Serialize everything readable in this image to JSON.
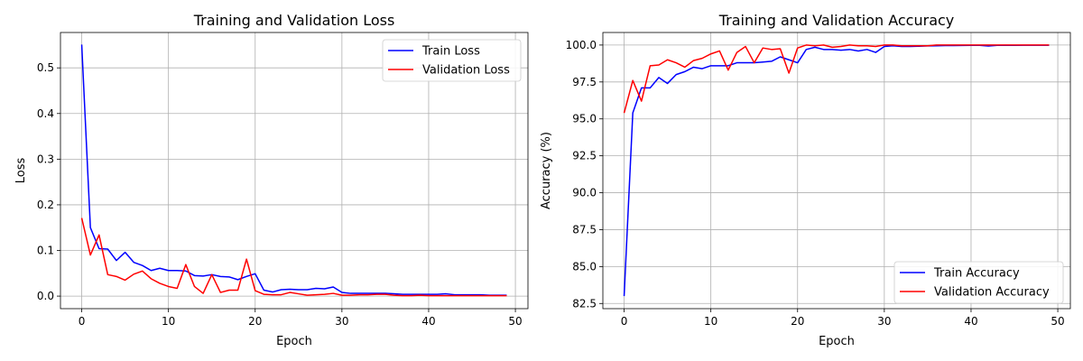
{
  "chart_data": [
    {
      "type": "line",
      "title": "Training and Validation Loss",
      "xlabel": "Epoch",
      "ylabel": "Loss",
      "xlim": [
        -2.45,
        51.45
      ],
      "ylim": [
        -0.0275,
        0.5775
      ],
      "xticks": [
        0,
        10,
        20,
        30,
        40,
        50
      ],
      "yticks": [
        0.0,
        0.1,
        0.2,
        0.3,
        0.4,
        0.5
      ],
      "ytick_labels": [
        "0.0",
        "0.1",
        "0.2",
        "0.3",
        "0.4",
        "0.5"
      ],
      "grid": true,
      "legend_loc": "upper-right",
      "series": [
        {
          "name": "Train Loss",
          "color": "#0000ff",
          "x": [
            0,
            1,
            2,
            3,
            4,
            5,
            6,
            7,
            8,
            9,
            10,
            11,
            12,
            13,
            14,
            15,
            16,
            17,
            18,
            19,
            20,
            21,
            22,
            23,
            24,
            25,
            26,
            27,
            28,
            29,
            30,
            31,
            32,
            33,
            34,
            35,
            36,
            37,
            38,
            39,
            40,
            41,
            42,
            43,
            44,
            45,
            46,
            47,
            48,
            49
          ],
          "values": [
            0.551,
            0.15,
            0.104,
            0.103,
            0.078,
            0.096,
            0.074,
            0.067,
            0.056,
            0.061,
            0.056,
            0.056,
            0.055,
            0.045,
            0.044,
            0.047,
            0.043,
            0.042,
            0.036,
            0.043,
            0.049,
            0.013,
            0.009,
            0.014,
            0.015,
            0.014,
            0.014,
            0.017,
            0.016,
            0.02,
            0.008,
            0.006,
            0.006,
            0.006,
            0.006,
            0.006,
            0.005,
            0.004,
            0.004,
            0.004,
            0.004,
            0.004,
            0.005,
            0.003,
            0.003,
            0.003,
            0.003,
            0.002,
            0.002,
            0.002
          ]
        },
        {
          "name": "Validation Loss",
          "color": "#ff0000",
          "x": [
            0,
            1,
            2,
            3,
            4,
            5,
            6,
            7,
            8,
            9,
            10,
            11,
            12,
            13,
            14,
            15,
            16,
            17,
            18,
            19,
            20,
            21,
            22,
            23,
            24,
            25,
            26,
            27,
            28,
            29,
            30,
            31,
            32,
            33,
            34,
            35,
            36,
            37,
            38,
            39,
            40,
            41,
            42,
            43,
            44,
            45,
            46,
            47,
            48,
            49
          ],
          "values": [
            0.171,
            0.09,
            0.134,
            0.047,
            0.043,
            0.035,
            0.048,
            0.055,
            0.038,
            0.028,
            0.021,
            0.017,
            0.069,
            0.021,
            0.006,
            0.047,
            0.008,
            0.013,
            0.013,
            0.081,
            0.012,
            0.004,
            0.003,
            0.003,
            0.008,
            0.005,
            0.002,
            0.003,
            0.004,
            0.006,
            0.002,
            0.002,
            0.003,
            0.003,
            0.004,
            0.004,
            0.002,
            0.001,
            0.001,
            0.002,
            0.001,
            0.001,
            0.001,
            0.001,
            0.001,
            0.001,
            0.001,
            0.001,
            0.001,
            0.001
          ]
        }
      ]
    },
    {
      "type": "line",
      "title": "Training and Validation Accuracy",
      "xlabel": "Epoch",
      "ylabel": "Accuracy (%)",
      "xlim": [
        -2.45,
        51.45
      ],
      "ylim": [
        82.15,
        100.85
      ],
      "xticks": [
        0,
        10,
        20,
        30,
        40,
        50
      ],
      "yticks": [
        82.5,
        85.0,
        87.5,
        90.0,
        92.5,
        95.0,
        97.5,
        100.0
      ],
      "ytick_labels": [
        "82.5",
        "85.0",
        "87.5",
        "90.0",
        "92.5",
        "95.0",
        "97.5",
        "100.0"
      ],
      "grid": true,
      "legend_loc": "lower-right",
      "series": [
        {
          "name": "Train Accuracy",
          "color": "#0000ff",
          "x": [
            0,
            1,
            2,
            3,
            4,
            5,
            6,
            7,
            8,
            9,
            10,
            11,
            12,
            13,
            14,
            15,
            16,
            17,
            18,
            19,
            20,
            21,
            22,
            23,
            24,
            25,
            26,
            27,
            28,
            29,
            30,
            31,
            32,
            33,
            34,
            35,
            36,
            37,
            38,
            39,
            40,
            41,
            42,
            43,
            44,
            45,
            46,
            47,
            48,
            49
          ],
          "values": [
            83.0,
            95.4,
            97.1,
            97.1,
            97.8,
            97.4,
            98.0,
            98.2,
            98.5,
            98.4,
            98.6,
            98.6,
            98.6,
            98.8,
            98.8,
            98.8,
            98.85,
            98.9,
            99.2,
            99.0,
            98.8,
            99.7,
            99.85,
            99.7,
            99.7,
            99.65,
            99.7,
            99.6,
            99.7,
            99.5,
            99.9,
            99.95,
            99.9,
            99.9,
            99.92,
            99.94,
            99.95,
            99.96,
            99.96,
            99.97,
            99.98,
            99.98,
            99.93,
            99.98,
            99.99,
            99.98,
            99.99,
            99.99,
            99.99,
            99.99
          ]
        },
        {
          "name": "Validation Accuracy",
          "color": "#ff0000",
          "x": [
            0,
            1,
            2,
            3,
            4,
            5,
            6,
            7,
            8,
            9,
            10,
            11,
            12,
            13,
            14,
            15,
            16,
            17,
            18,
            19,
            20,
            21,
            22,
            23,
            24,
            25,
            26,
            27,
            28,
            29,
            30,
            31,
            32,
            33,
            34,
            35,
            36,
            37,
            38,
            39,
            40,
            41,
            42,
            43,
            44,
            45,
            46,
            47,
            48,
            49
          ],
          "values": [
            95.4,
            97.6,
            96.2,
            98.6,
            98.65,
            99.0,
            98.8,
            98.5,
            98.95,
            99.1,
            99.4,
            99.6,
            98.3,
            99.5,
            99.9,
            98.8,
            99.8,
            99.7,
            99.75,
            98.1,
            99.8,
            100.0,
            99.95,
            100.0,
            99.85,
            99.9,
            100.0,
            99.95,
            99.95,
            99.9,
            100.0,
            100.0,
            99.95,
            99.95,
            99.95,
            99.95,
            100.0,
            100.0,
            100.0,
            100.0,
            100.0,
            100.0,
            100.0,
            100.0,
            100.0,
            100.0,
            100.0,
            100.0,
            100.0,
            100.0
          ]
        }
      ]
    }
  ]
}
